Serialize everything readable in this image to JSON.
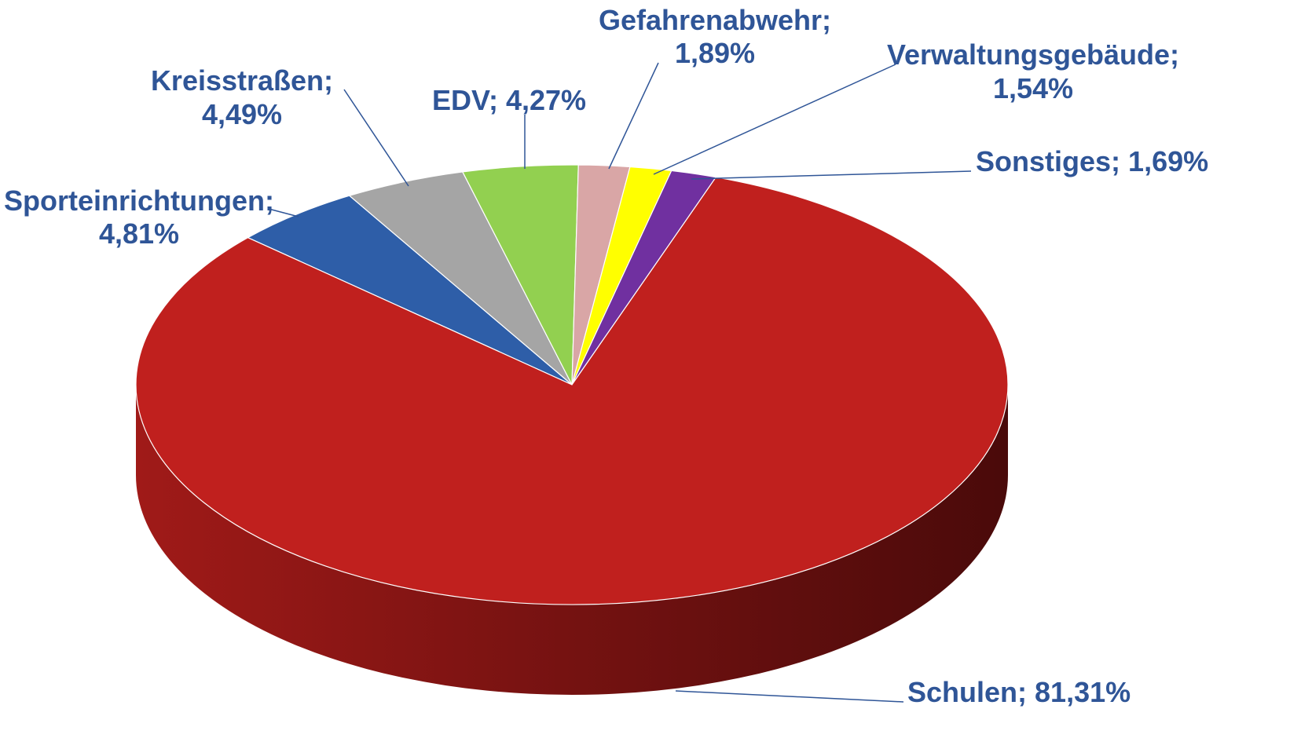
{
  "chart_data": {
    "type": "pie3d",
    "categories": [
      "Sporteinrichtungen",
      "Kreisstraßen",
      "EDV",
      "Gefahrenabwehr",
      "Verwaltungsgebäude",
      "Sonstiges",
      "Schulen"
    ],
    "values": [
      4.81,
      4.49,
      4.27,
      1.89,
      1.54,
      1.69,
      81.31
    ],
    "value_labels": [
      "4,81%",
      "4,49%",
      "4,27%",
      "1,89%",
      "1,54%",
      "1,69%",
      "81,31%"
    ],
    "label_separator": "; ",
    "colors": [
      "#2e5ea8",
      "#a5a5a5",
      "#92d050",
      "#d9a6a6",
      "#ffff00",
      "#7030a0",
      "#c0201e"
    ]
  }
}
